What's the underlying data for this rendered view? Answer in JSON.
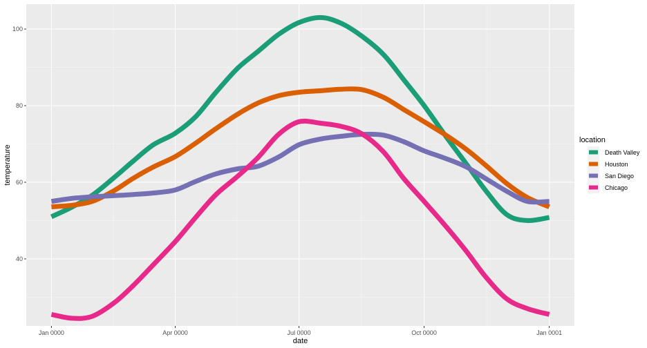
{
  "chart_data": {
    "type": "line",
    "xlabel": "date",
    "ylabel": "temperature",
    "x_ticks": [
      "Jan 0000",
      "Apr 0000",
      "Jul 0000",
      "Oct 0000",
      "Jan 0001"
    ],
    "x_tick_days": [
      0,
      91,
      182,
      274,
      366
    ],
    "xlim_days": [
      -18.5,
      384.5
    ],
    "y_ticks": [
      40,
      60,
      80,
      100
    ],
    "ylim": [
      22.5,
      106.5
    ],
    "grid": true,
    "legend_title": "location",
    "legend_position": "right",
    "x_days": [
      0,
      15,
      30,
      46,
      60,
      75,
      91,
      106,
      121,
      137,
      152,
      167,
      182,
      198,
      213,
      228,
      244,
      259,
      274,
      290,
      305,
      320,
      335,
      350,
      366
    ],
    "series": [
      {
        "name": "Death Valley",
        "color": "#1B9E77",
        "values": [
          51.0,
          53.5,
          56.6,
          61.2,
          65.5,
          69.8,
          72.8,
          77.1,
          83.5,
          89.8,
          94.2,
          98.6,
          101.7,
          103.0,
          101.5,
          98.2,
          93.4,
          86.8,
          80.0,
          72.0,
          64.8,
          57.5,
          51.5,
          50.0,
          50.8
        ]
      },
      {
        "name": "Houston",
        "color": "#D95F02",
        "values": [
          53.6,
          54.0,
          55.0,
          57.8,
          61.0,
          64.0,
          66.7,
          70.2,
          74.0,
          77.8,
          80.7,
          82.6,
          83.5,
          83.9,
          84.3,
          84.2,
          82.2,
          79.0,
          75.8,
          72.3,
          68.6,
          64.2,
          59.6,
          56.0,
          53.6
        ]
      },
      {
        "name": "San Diego",
        "color": "#7570B3",
        "values": [
          55.0,
          55.8,
          56.2,
          56.5,
          56.8,
          57.2,
          58.0,
          60.2,
          62.2,
          63.5,
          64.2,
          66.6,
          69.8,
          71.3,
          72.0,
          72.5,
          72.3,
          70.6,
          68.2,
          66.2,
          64.0,
          60.8,
          57.6,
          55.0,
          55.0
        ]
      },
      {
        "name": "Chicago",
        "color": "#E7298A",
        "values": [
          25.5,
          24.5,
          25.0,
          28.5,
          33.0,
          38.5,
          44.5,
          50.8,
          56.8,
          61.6,
          66.5,
          72.5,
          75.8,
          75.4,
          74.6,
          72.7,
          68.0,
          61.0,
          55.0,
          48.5,
          42.0,
          35.0,
          29.5,
          27.0,
          25.5
        ]
      }
    ]
  }
}
